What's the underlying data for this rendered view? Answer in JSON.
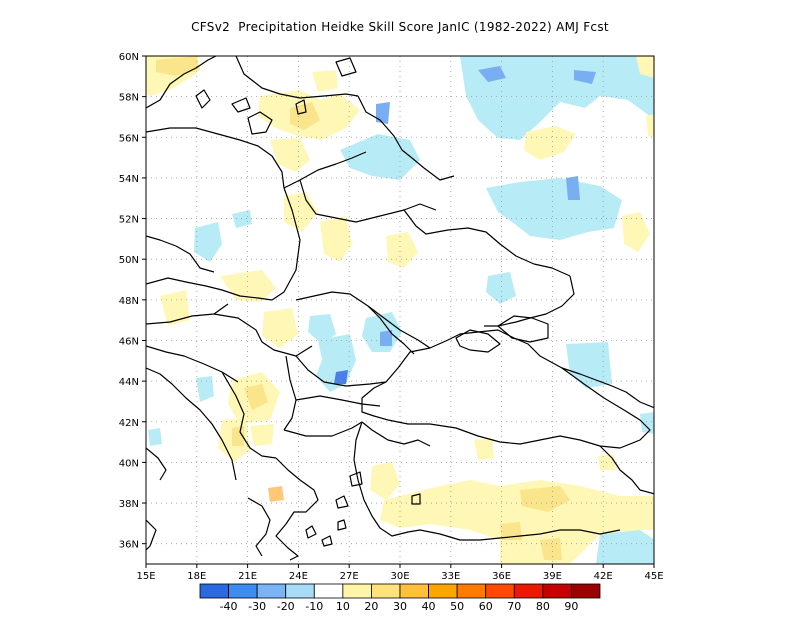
{
  "title": "CFSv2  Precipitation Heidke Skill Score JanIC (1982-2022) AMJ Fcst",
  "lon_labels": [
    "15E",
    "18E",
    "21E",
    "24E",
    "27E",
    "30E",
    "33E",
    "36E",
    "39E",
    "42E",
    "45E"
  ],
  "lat_labels": [
    "36N",
    "38N",
    "40N",
    "42N",
    "44N",
    "46N",
    "48N",
    "50N",
    "52N",
    "54N",
    "56N",
    "58N",
    "60N"
  ],
  "lon_range": [
    15,
    45
  ],
  "lat_range": [
    35,
    60
  ],
  "colorbar": {
    "colors": [
      "#2a6ae0",
      "#3f8cf0",
      "#7ab4f5",
      "#a8dcf6",
      "#ffffff",
      "#fff5a8",
      "#ffe27a",
      "#ffc03c",
      "#ffa500",
      "#ff7b00",
      "#ff4a00",
      "#e81a00",
      "#c40000",
      "#9a0000"
    ],
    "labels": [
      "-40",
      "-30",
      "-20",
      "-10",
      "10",
      "20",
      "30",
      "40",
      "50",
      "60",
      "70",
      "80",
      "90"
    ]
  },
  "palette": {
    "light_blue": "#b7ecf7",
    "medium_blue": "#7aaef2",
    "dark_blue": "#4a7fe8",
    "light_yellow": "#fff7b5",
    "yellow": "#fbe58c",
    "orange": "#ffc878"
  }
}
